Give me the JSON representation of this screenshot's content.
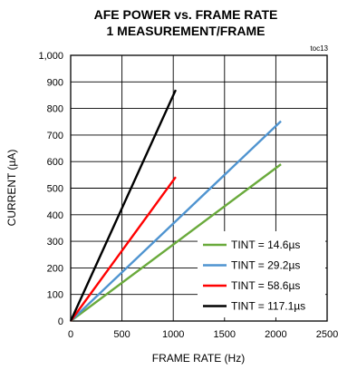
{
  "chart_data": {
    "type": "line",
    "title_line1": "AFE POWER vs. FRAME RATE",
    "title_line2": "1 MEASUREMENT/FRAME",
    "tag": "toc13",
    "xlabel": "FRAME RATE (Hz)",
    "ylabel": "CURRENT (µA)",
    "xlim": [
      0,
      2500
    ],
    "ylim": [
      0,
      1000
    ],
    "x_ticks": [
      "0",
      "500",
      "1000",
      "1500",
      "2000",
      "2500"
    ],
    "y_ticks": [
      "0",
      "100",
      "200",
      "300",
      "400",
      "500",
      "600",
      "700",
      "800",
      "900",
      "1,000"
    ],
    "grid": true,
    "legend_position": "bottom-right",
    "series": [
      {
        "name": "TINT = 14.6µs",
        "color": "#6aaa3c",
        "x": [
          0,
          2050
        ],
        "y": [
          0,
          590
        ]
      },
      {
        "name": "TINT = 29.2µs",
        "color": "#4f94d0",
        "x": [
          0,
          2050
        ],
        "y": [
          0,
          752
        ]
      },
      {
        "name": "TINT = 58.6µs",
        "color": "#ff0000",
        "x": [
          0,
          1024
        ],
        "y": [
          0,
          542
        ]
      },
      {
        "name": "TINT = 117.1µs",
        "color": "#000000",
        "x": [
          0,
          1024
        ],
        "y": [
          0,
          870
        ]
      }
    ]
  }
}
